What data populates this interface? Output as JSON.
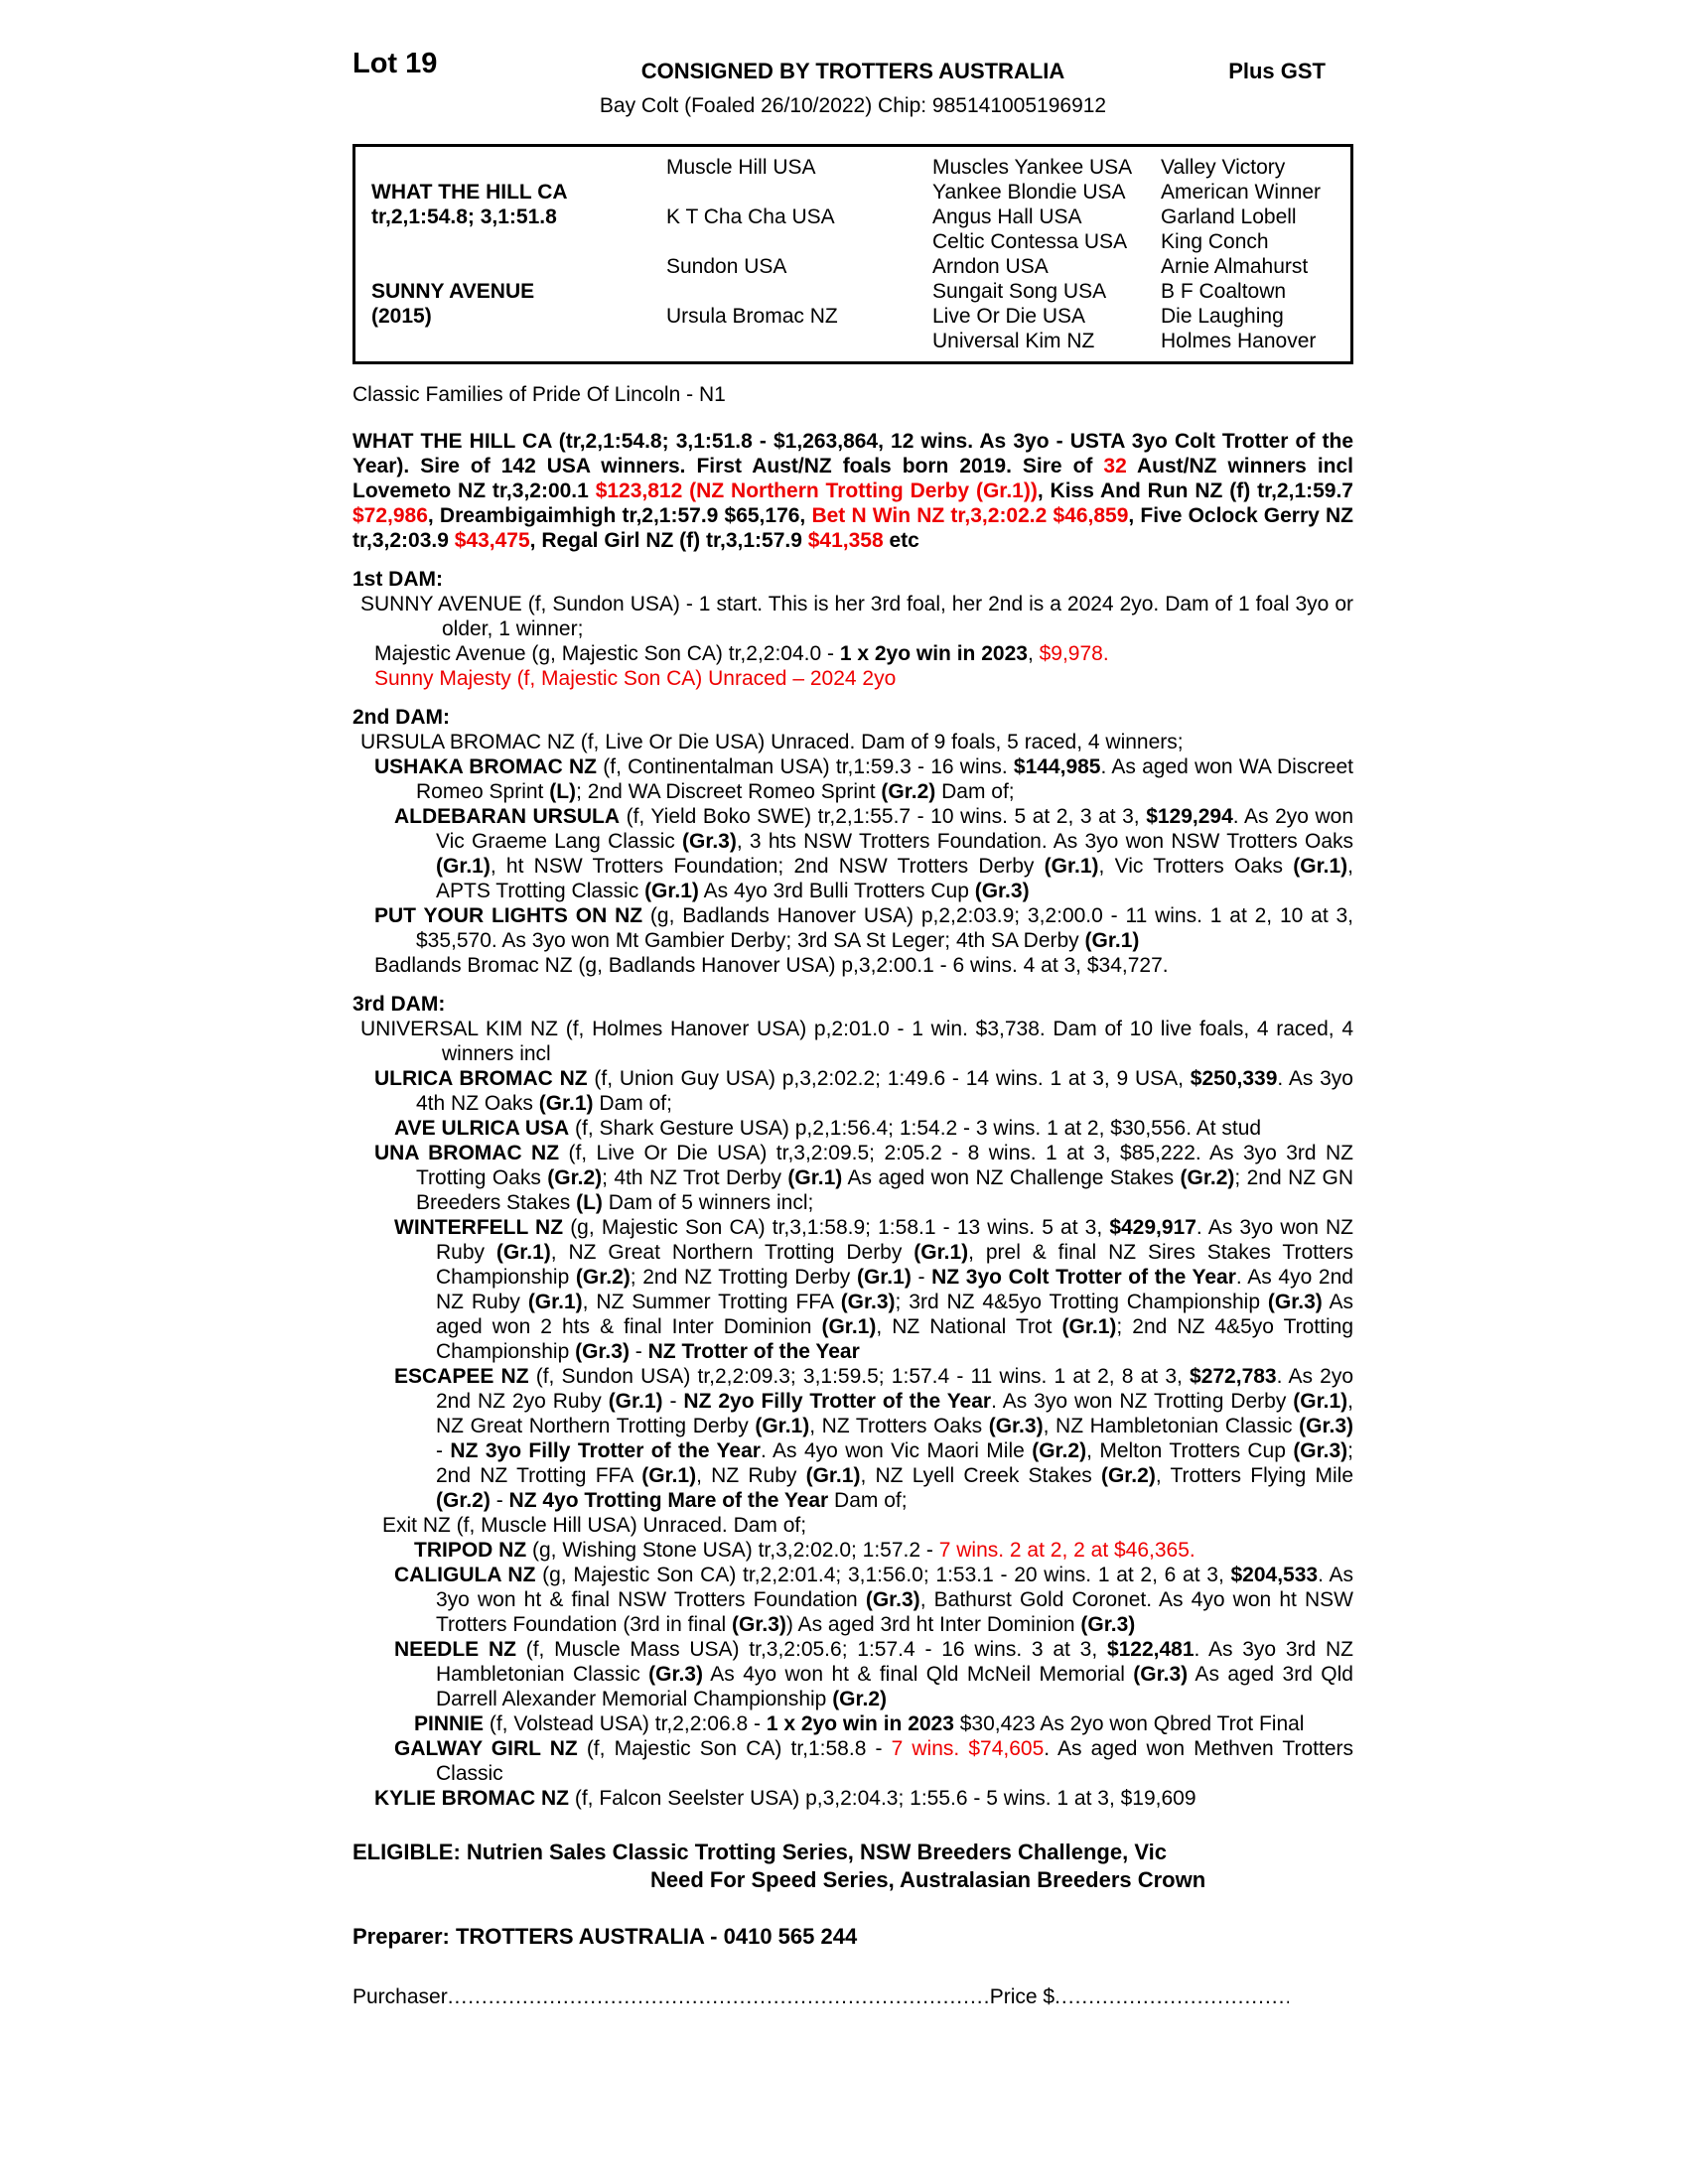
{
  "colors": {
    "red": "#ee0000"
  },
  "header": {
    "lot": "Lot 19",
    "consigned": "CONSIGNED BY TROTTERS AUSTRALIA",
    "gst": "Plus GST",
    "subtitle": "Bay Colt (Foaled 26/10/2022) Chip: 985141005196912"
  },
  "pedigree": {
    "rows": [
      [
        "",
        "Muscle Hill USA",
        "Muscles Yankee USA",
        "Valley Victory"
      ],
      [
        "WHAT THE HILL CA",
        "",
        "Yankee Blondie USA",
        "American Winner"
      ],
      [
        "tr,2,1:54.8; 3,1:51.8",
        "K T Cha Cha USA",
        "Angus Hall USA",
        "Garland Lobell"
      ],
      [
        "",
        "",
        "Celtic Contessa USA",
        "King Conch"
      ],
      [
        "",
        "Sundon USA",
        "Arndon USA",
        "Arnie Almahurst"
      ],
      [
        "SUNNY AVENUE",
        "",
        "Sungait Song USA",
        "B F Coaltown"
      ],
      [
        "(2015)",
        "Ursula Bromac NZ",
        "Live Or Die USA",
        "Die Laughing"
      ],
      [
        "",
        "",
        "Universal Kim NZ",
        "Holmes Hanover"
      ]
    ]
  },
  "family_line": "Classic Families of Pride Of Lincoln - N1",
  "sire_paragraph": [
    {
      "t": "WHAT THE HILL CA (tr,2,1:54.8; 3,1:51.8 - $1,263,864, 12 wins. As 3yo - USTA 3yo Colt Trotter of the Year). Sire of 142 USA winners. First Aust/NZ foals born 2019. Sire of "
    },
    {
      "t": "32",
      "r": 1
    },
    {
      "t": " Aust/NZ winners incl Lovemeto NZ tr,3,2:00.1 "
    },
    {
      "t": "$123,812 (NZ Northern Trotting Derby (Gr.1))",
      "r": 1
    },
    {
      "t": ", Kiss And Run NZ (f) tr,2,1:59.7 "
    },
    {
      "t": "$72,986",
      "r": 1
    },
    {
      "t": ", Dreambigaimhigh tr,2,1:57.9 $65,176, "
    },
    {
      "t": "Bet N Win NZ tr,3,2:02.2 $46,859",
      "r": 1
    },
    {
      "t": ", Five Oclock Gerry NZ tr,3,2:03.9 "
    },
    {
      "t": "$43,475",
      "r": 1
    },
    {
      "t": ", Regal Girl NZ (f) tr,3,1:57.9 "
    },
    {
      "t": "$41,358",
      "r": 1
    },
    {
      "t": " etc"
    }
  ],
  "sections": [
    {
      "heading": "1st DAM:",
      "paras": [
        {
          "ind": "dam",
          "runs": [
            {
              "t": "SUNNY AVENUE (f, Sundon USA) - 1 start. This is her 3rd foal, her 2nd is a 2024 2yo. Dam of 1 foal 3yo or older, 1 winner;"
            }
          ]
        },
        {
          "ind": "l1",
          "runs": [
            {
              "t": "Majestic Avenue (g, Majestic Son CA) tr,2,2:04.0 - "
            },
            {
              "t": "1 x 2yo win in 2023",
              "b": 1
            },
            {
              "t": ", "
            },
            {
              "t": "$9,978.",
              "r": 1
            }
          ]
        },
        {
          "ind": "l1",
          "runs": [
            {
              "t": "Sunny Majesty (f, Majestic Son CA) Unraced – 2024 2yo",
              "r": 1
            }
          ]
        }
      ]
    },
    {
      "heading": "2nd DAM:",
      "paras": [
        {
          "ind": "dam",
          "runs": [
            {
              "t": "URSULA BROMAC NZ (f, Live Or Die USA) Unraced. Dam of 9 foals, 5 raced, 4 winners;"
            }
          ]
        },
        {
          "ind": "l1",
          "runs": [
            {
              "t": "USHAKA BROMAC NZ",
              "b": 1
            },
            {
              "t": " (f, Continentalman USA) tr,1:59.3 - 16 wins. "
            },
            {
              "t": "$144,985",
              "b": 1
            },
            {
              "t": ". As aged won WA Discreet Romeo Sprint "
            },
            {
              "t": "(L)",
              "b": 1
            },
            {
              "t": "; 2nd WA Discreet Romeo Sprint "
            },
            {
              "t": "(Gr.2)",
              "b": 1
            },
            {
              "t": " Dam of;"
            }
          ]
        },
        {
          "ind": "l2",
          "runs": [
            {
              "t": "ALDEBARAN URSULA",
              "b": 1
            },
            {
              "t": " (f, Yield Boko SWE) tr,2,1:55.7 - 10 wins. 5 at 2, 3 at 3, "
            },
            {
              "t": "$129,294",
              "b": 1
            },
            {
              "t": ". As 2yo won Vic Graeme Lang Classic "
            },
            {
              "t": "(Gr.3)",
              "b": 1
            },
            {
              "t": ", 3 hts NSW Trotters Foundation. As 3yo won NSW Trotters Oaks "
            },
            {
              "t": "(Gr.1)",
              "b": 1
            },
            {
              "t": ", ht NSW Trotters Foundation; 2nd NSW Trotters Derby "
            },
            {
              "t": "(Gr.1)",
              "b": 1
            },
            {
              "t": ", Vic Trotters Oaks "
            },
            {
              "t": "(Gr.1)",
              "b": 1
            },
            {
              "t": ", APTS Trotting Classic "
            },
            {
              "t": "(Gr.1)",
              "b": 1
            },
            {
              "t": " As 4yo 3rd Bulli Trotters Cup "
            },
            {
              "t": "(Gr.3)",
              "b": 1
            }
          ]
        },
        {
          "ind": "l1",
          "runs": [
            {
              "t": "PUT YOUR LIGHTS ON NZ",
              "b": 1
            },
            {
              "t": " (g, Badlands Hanover USA) p,2,2:03.9; 3,2:00.0 - 11 wins. 1 at 2, 10 at 3, $35,570. As 3yo won Mt Gambier Derby; 3rd SA St Leger; 4th SA Derby "
            },
            {
              "t": "(Gr.1)",
              "b": 1
            }
          ]
        },
        {
          "ind": "l1",
          "runs": [
            {
              "t": "Badlands Bromac NZ (g, Badlands Hanover USA) p,3,2:00.1 - 6 wins. 4 at 3, $34,727."
            }
          ]
        }
      ]
    },
    {
      "heading": "3rd DAM:",
      "paras": [
        {
          "ind": "dam",
          "runs": [
            {
              "t": "UNIVERSAL KIM NZ (f, Holmes Hanover USA) p,2:01.0 - 1 win. $3,738. Dam of 10 live foals, 4 raced, 4 winners incl"
            }
          ]
        },
        {
          "ind": "l1",
          "runs": [
            {
              "t": "ULRICA BROMAC NZ",
              "b": 1
            },
            {
              "t": " (f, Union Guy USA) p,3,2:02.2; 1:49.6 - 14 wins. 1 at 3, 9 USA, "
            },
            {
              "t": "$250,339",
              "b": 1
            },
            {
              "t": ". As 3yo 4th NZ Oaks "
            },
            {
              "t": "(Gr.1)",
              "b": 1
            },
            {
              "t": " Dam of;"
            }
          ]
        },
        {
          "ind": "l2",
          "runs": [
            {
              "t": "AVE ULRICA USA",
              "b": 1
            },
            {
              "t": " (f, Shark Gesture USA) p,2,1:56.4; 1:54.2 - 3 wins. 1 at 2, $30,556. At stud"
            }
          ]
        },
        {
          "ind": "l1",
          "runs": [
            {
              "t": "UNA BROMAC NZ",
              "b": 1
            },
            {
              "t": " (f, Live Or Die USA) tr,3,2:09.5; 2:05.2 - 8 wins. 1 at 3, $85,222. As 3yo 3rd NZ Trotting Oaks "
            },
            {
              "t": "(Gr.2)",
              "b": 1
            },
            {
              "t": "; 4th NZ Trot Derby "
            },
            {
              "t": "(Gr.1)",
              "b": 1
            },
            {
              "t": " As aged won NZ Challenge Stakes "
            },
            {
              "t": "(Gr.2)",
              "b": 1
            },
            {
              "t": "; 2nd NZ GN Breeders Stakes "
            },
            {
              "t": "(L)",
              "b": 1
            },
            {
              "t": " Dam of 5 winners incl;"
            }
          ]
        },
        {
          "ind": "l2",
          "runs": [
            {
              "t": "WINTERFELL NZ",
              "b": 1
            },
            {
              "t": " (g, Majestic Son CA) tr,3,1:58.9; 1:58.1 - 13 wins. 5 at 3, "
            },
            {
              "t": "$429,917",
              "b": 1
            },
            {
              "t": ". As 3yo won NZ Ruby "
            },
            {
              "t": "(Gr.1)",
              "b": 1
            },
            {
              "t": ", NZ Great Northern Trotting Derby "
            },
            {
              "t": "(Gr.1)",
              "b": 1
            },
            {
              "t": ", prel & final NZ Sires Stakes Trotters Championship "
            },
            {
              "t": "(Gr.2)",
              "b": 1
            },
            {
              "t": "; 2nd NZ Trotting Derby "
            },
            {
              "t": "(Gr.1)",
              "b": 1
            },
            {
              "t": " - "
            },
            {
              "t": "NZ 3yo Colt Trotter of the Year",
              "b": 1
            },
            {
              "t": ". As 4yo 2nd NZ Ruby "
            },
            {
              "t": "(Gr.1)",
              "b": 1
            },
            {
              "t": ", NZ Summer Trotting FFA "
            },
            {
              "t": "(Gr.3)",
              "b": 1
            },
            {
              "t": "; 3rd NZ 4&5yo Trotting Championship "
            },
            {
              "t": "(Gr.3)",
              "b": 1
            },
            {
              "t": " As aged won 2 hts & final Inter Dominion "
            },
            {
              "t": "(Gr.1)",
              "b": 1
            },
            {
              "t": ", NZ National Trot "
            },
            {
              "t": "(Gr.1)",
              "b": 1
            },
            {
              "t": "; 2nd NZ 4&5yo Trotting Championship "
            },
            {
              "t": "(Gr.3)",
              "b": 1
            },
            {
              "t": " - "
            },
            {
              "t": "NZ Trotter of the Year",
              "b": 1
            }
          ]
        },
        {
          "ind": "l2",
          "runs": [
            {
              "t": "ESCAPEE NZ",
              "b": 1
            },
            {
              "t": " (f, Sundon USA) tr,2,2:09.3; 3,1:59.5; 1:57.4 - 11 wins. 1 at 2, 8 at 3, "
            },
            {
              "t": "$272,783",
              "b": 1
            },
            {
              "t": ". As 2yo 2nd NZ 2yo Ruby "
            },
            {
              "t": "(Gr.1)",
              "b": 1
            },
            {
              "t": " - "
            },
            {
              "t": "NZ 2yo Filly Trotter of the Year",
              "b": 1
            },
            {
              "t": ". As 3yo won NZ Trotting Derby "
            },
            {
              "t": "(Gr.1)",
              "b": 1
            },
            {
              "t": ", NZ Great Northern Trotting Derby "
            },
            {
              "t": "(Gr.1)",
              "b": 1
            },
            {
              "t": ", NZ Trotters Oaks "
            },
            {
              "t": "(Gr.3)",
              "b": 1
            },
            {
              "t": ", NZ Hambletonian Classic "
            },
            {
              "t": "(Gr.3)",
              "b": 1
            },
            {
              "t": " - "
            },
            {
              "t": "NZ 3yo Filly Trotter of the Year",
              "b": 1
            },
            {
              "t": ". As 4yo won Vic Maori Mile "
            },
            {
              "t": "(Gr.2)",
              "b": 1
            },
            {
              "t": ", Melton Trotters Cup "
            },
            {
              "t": "(Gr.3)",
              "b": 1
            },
            {
              "t": "; 2nd NZ Trotting FFA "
            },
            {
              "t": "(Gr.1)",
              "b": 1
            },
            {
              "t": ", NZ Ruby "
            },
            {
              "t": "(Gr.1)",
              "b": 1
            },
            {
              "t": ", NZ Lyell Creek Stakes "
            },
            {
              "t": "(Gr.2)",
              "b": 1
            },
            {
              "t": ", Trotters Flying Mile "
            },
            {
              "t": "(Gr.2)",
              "b": 1
            },
            {
              "t": " - "
            },
            {
              "t": "NZ 4yo Trotting Mare of the Year",
              "b": 1
            },
            {
              "t": " Dam of;"
            }
          ]
        },
        {
          "ind": "l2x",
          "runs": [
            {
              "t": "Exit NZ (f, Muscle Hill USA) Unraced. Dam of;"
            }
          ]
        },
        {
          "ind": "l3",
          "runs": [
            {
              "t": "TRIPOD NZ",
              "b": 1
            },
            {
              "t": " (g, Wishing Stone USA) tr,3,2:02.0; 1:57.2 - "
            },
            {
              "t": "7 wins. 2 at 2, 2 at $46,365.",
              "r": 1
            }
          ]
        },
        {
          "ind": "l2",
          "runs": [
            {
              "t": "CALIGULA NZ",
              "b": 1
            },
            {
              "t": " (g, Majestic Son CA) tr,2,2:01.4; 3,1:56.0; 1:53.1 - 20 wins. 1 at 2, 6 at 3, "
            },
            {
              "t": "$204,533",
              "b": 1
            },
            {
              "t": ". As 3yo won ht & final NSW Trotters Foundation "
            },
            {
              "t": "(Gr.3)",
              "b": 1
            },
            {
              "t": ", Bathurst Gold Coronet. As 4yo won ht NSW Trotters Foundation (3rd in final "
            },
            {
              "t": "(Gr.3)",
              "b": 1
            },
            {
              "t": ") As aged 3rd ht Inter Dominion "
            },
            {
              "t": "(Gr.3)",
              "b": 1
            }
          ]
        },
        {
          "ind": "l2",
          "runs": [
            {
              "t": "NEEDLE NZ",
              "b": 1
            },
            {
              "t": " (f, Muscle Mass USA) tr,3,2:05.6; 1:57.4 - 16 wins. 3 at 3, "
            },
            {
              "t": "$122,481",
              "b": 1
            },
            {
              "t": ". As 3yo 3rd NZ Hambletonian Classic "
            },
            {
              "t": "(Gr.3)",
              "b": 1
            },
            {
              "t": " As 4yo won ht & final Qld McNeil Memorial "
            },
            {
              "t": "(Gr.3)",
              "b": 1
            },
            {
              "t": " As aged 3rd Qld Darrell Alexander Memorial Championship "
            },
            {
              "t": "(Gr.2)",
              "b": 1
            }
          ]
        },
        {
          "ind": "l3",
          "runs": [
            {
              "t": "PINNIE",
              "b": 1
            },
            {
              "t": " (f, Volstead USA) tr,2,2:06.8 - "
            },
            {
              "t": "1 x 2yo win in 2023",
              "b": 1
            },
            {
              "t": " $30,423 As 2yo won Qbred Trot Final"
            }
          ]
        },
        {
          "ind": "l2",
          "runs": [
            {
              "t": "GALWAY GIRL NZ",
              "b": 1
            },
            {
              "t": " (f, Majestic Son CA) tr,1:58.8 - "
            },
            {
              "t": "7 wins. $74,605",
              "r": 1
            },
            {
              "t": ". As aged won Methven Trotters Classic"
            }
          ]
        },
        {
          "ind": "l1",
          "runs": [
            {
              "t": "KYLIE BROMAC NZ",
              "b": 1
            },
            {
              "t": " (f, Falcon Seelster USA) p,3,2:04.3; 1:55.6 - 5 wins. 1 at 3, $19,609"
            }
          ]
        }
      ]
    }
  ],
  "eligible": {
    "line1": "ELIGIBLE: Nutrien Sales Classic Trotting Series, NSW Breeders Challenge, Vic",
    "line2": "Need For Speed Series, Australasian Breeders Crown"
  },
  "preparer": "Preparer: TROTTERS AUSTRALIA - 0410 565 244",
  "purchaser": {
    "label": "Purchaser",
    "leader1": "..........................................................................................................................",
    "price_label": "Price $",
    "leader2": "..................................................................."
  }
}
